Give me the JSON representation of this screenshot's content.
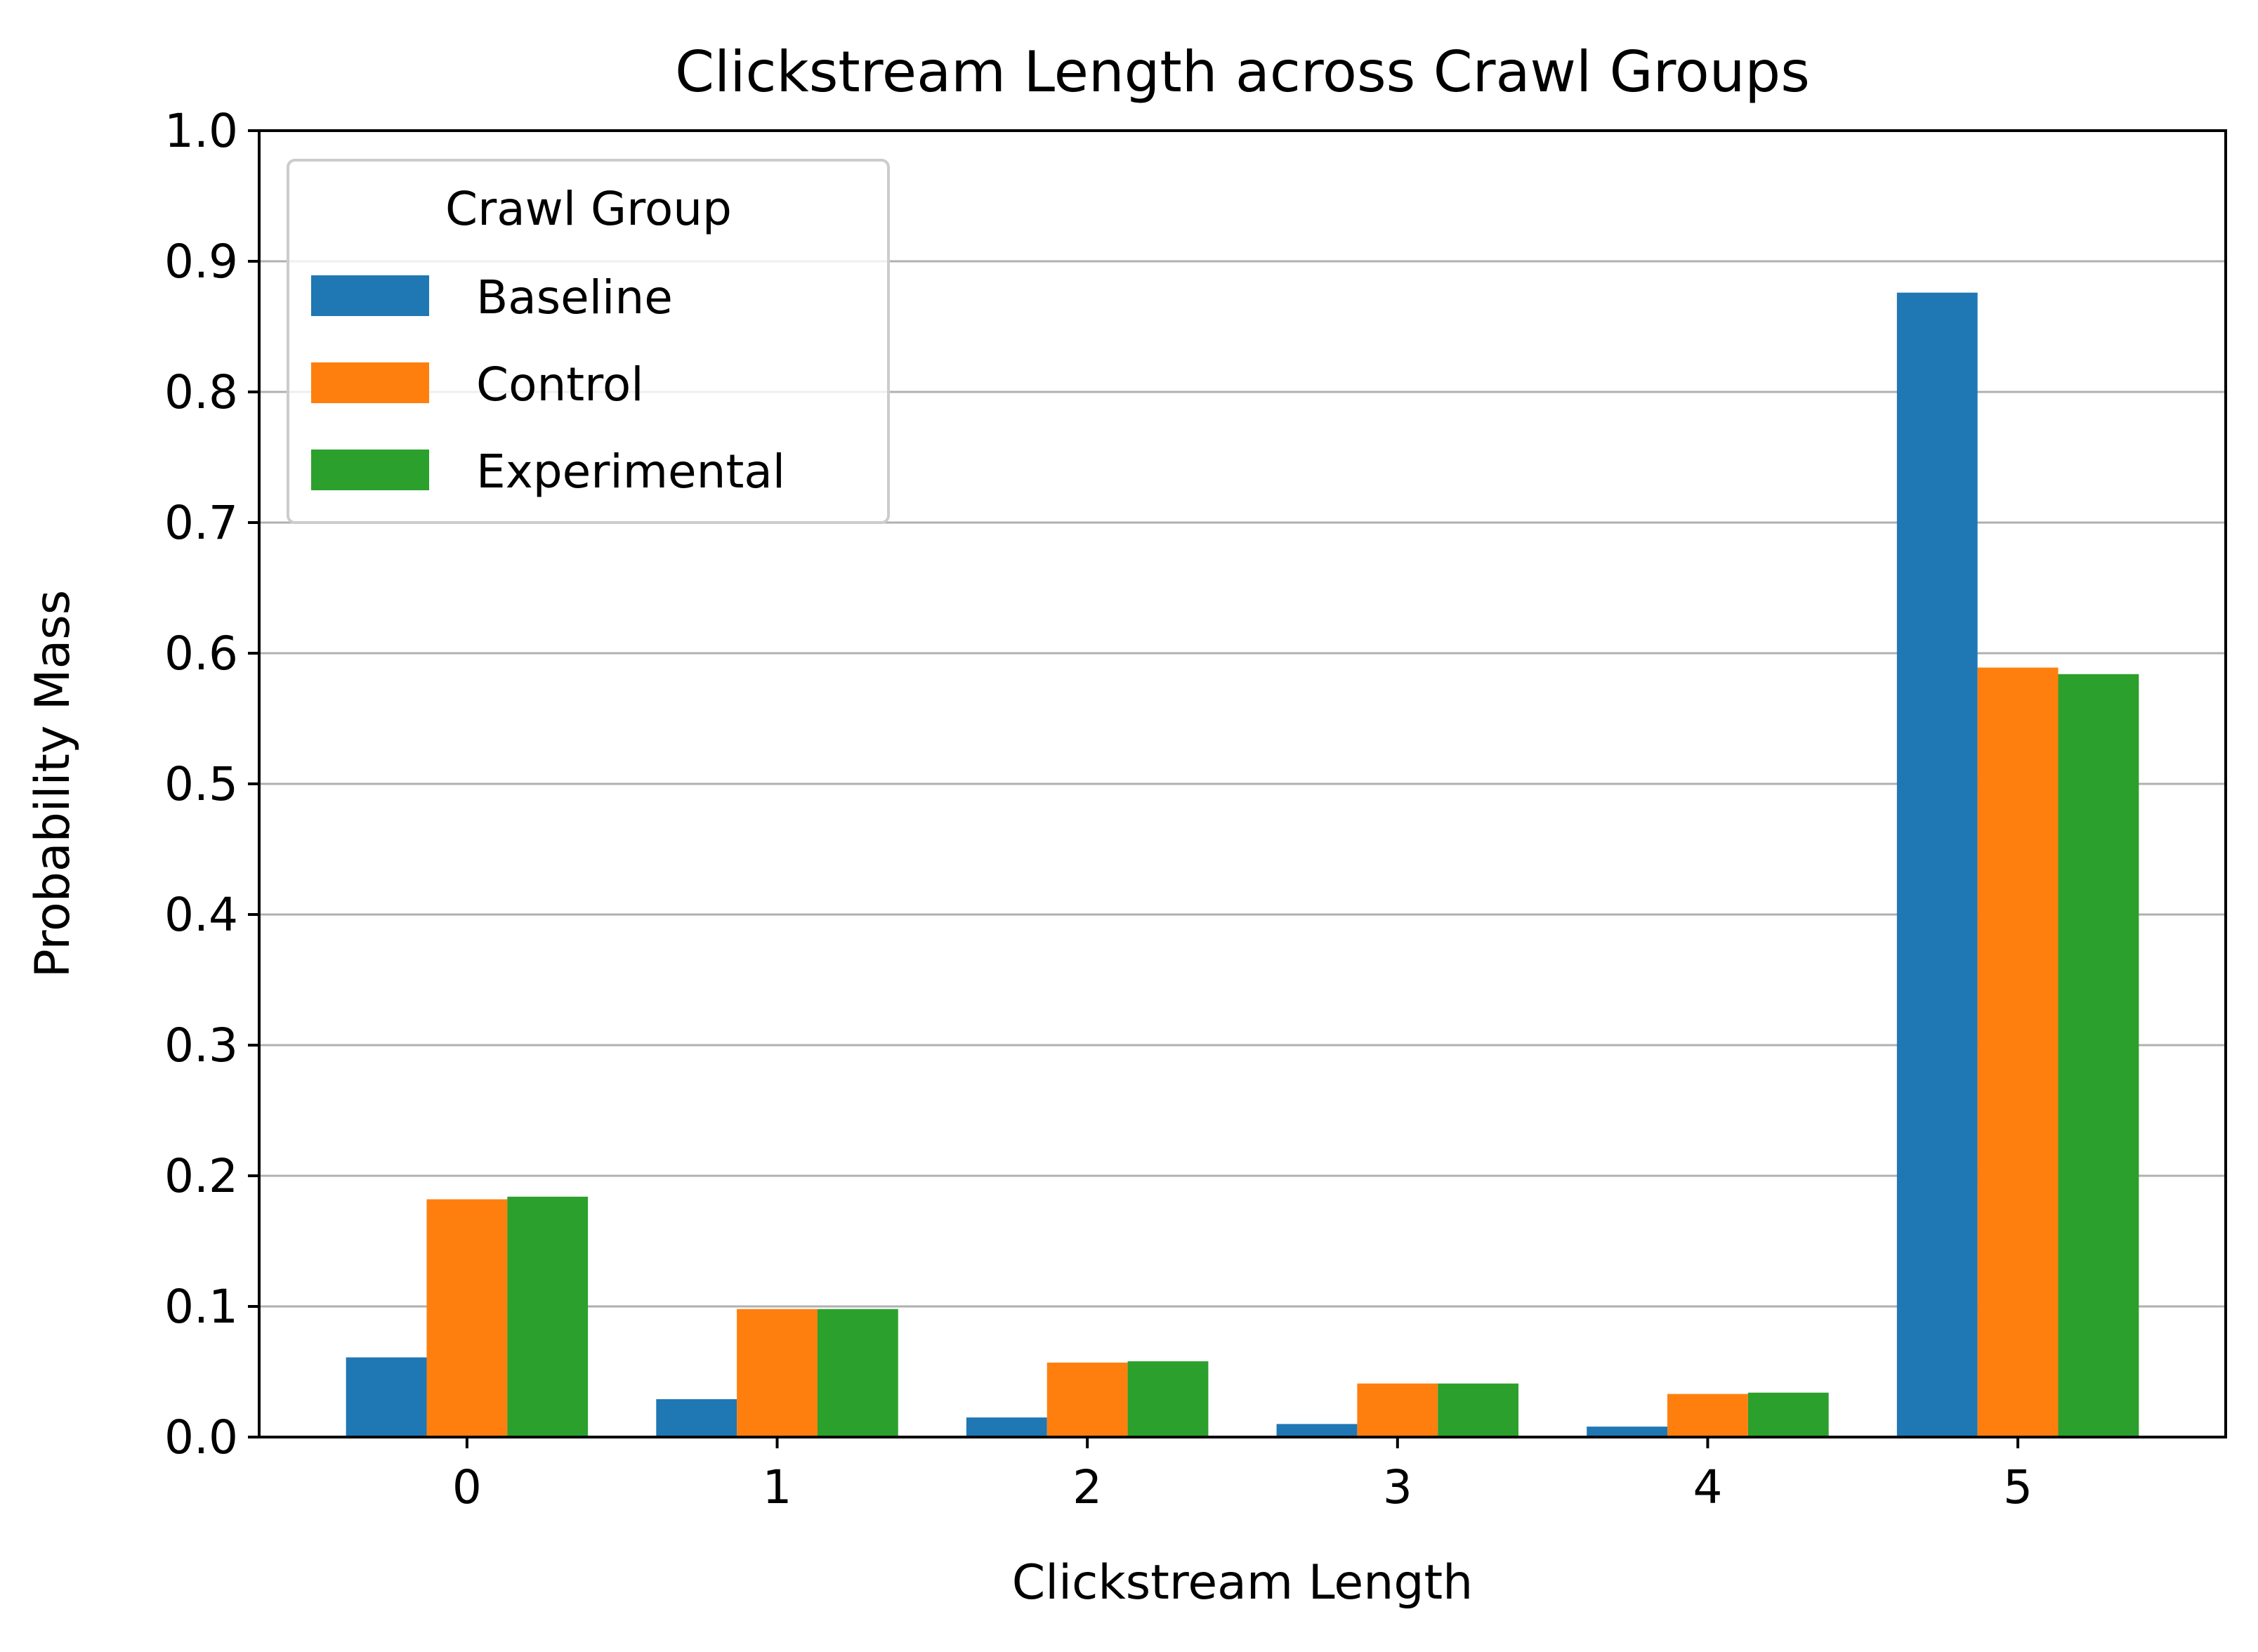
{
  "chart_data": {
    "type": "bar",
    "title": "Clickstream Length across Crawl Groups",
    "xlabel": "Clickstream Length",
    "ylabel": "Probability Mass",
    "categories": [
      "0",
      "1",
      "2",
      "3",
      "4",
      "5"
    ],
    "series": [
      {
        "name": "Baseline",
        "color": "#1f77b4",
        "values": [
          0.061,
          0.029,
          0.015,
          0.01,
          0.008,
          0.876
        ]
      },
      {
        "name": "Control",
        "color": "#ff7f0e",
        "values": [
          0.182,
          0.098,
          0.057,
          0.041,
          0.033,
          0.589
        ]
      },
      {
        "name": "Experimental",
        "color": "#2ca02c",
        "values": [
          0.184,
          0.098,
          0.058,
          0.041,
          0.034,
          0.584
        ]
      }
    ],
    "ylim": [
      0,
      1.0
    ],
    "yticks": [
      "0.0",
      "0.1",
      "0.2",
      "0.3",
      "0.4",
      "0.5",
      "0.6",
      "0.7",
      "0.8",
      "0.9",
      "1.0"
    ],
    "grid": "y",
    "legend": {
      "title": "Crawl Group",
      "placement": "top-left"
    }
  }
}
